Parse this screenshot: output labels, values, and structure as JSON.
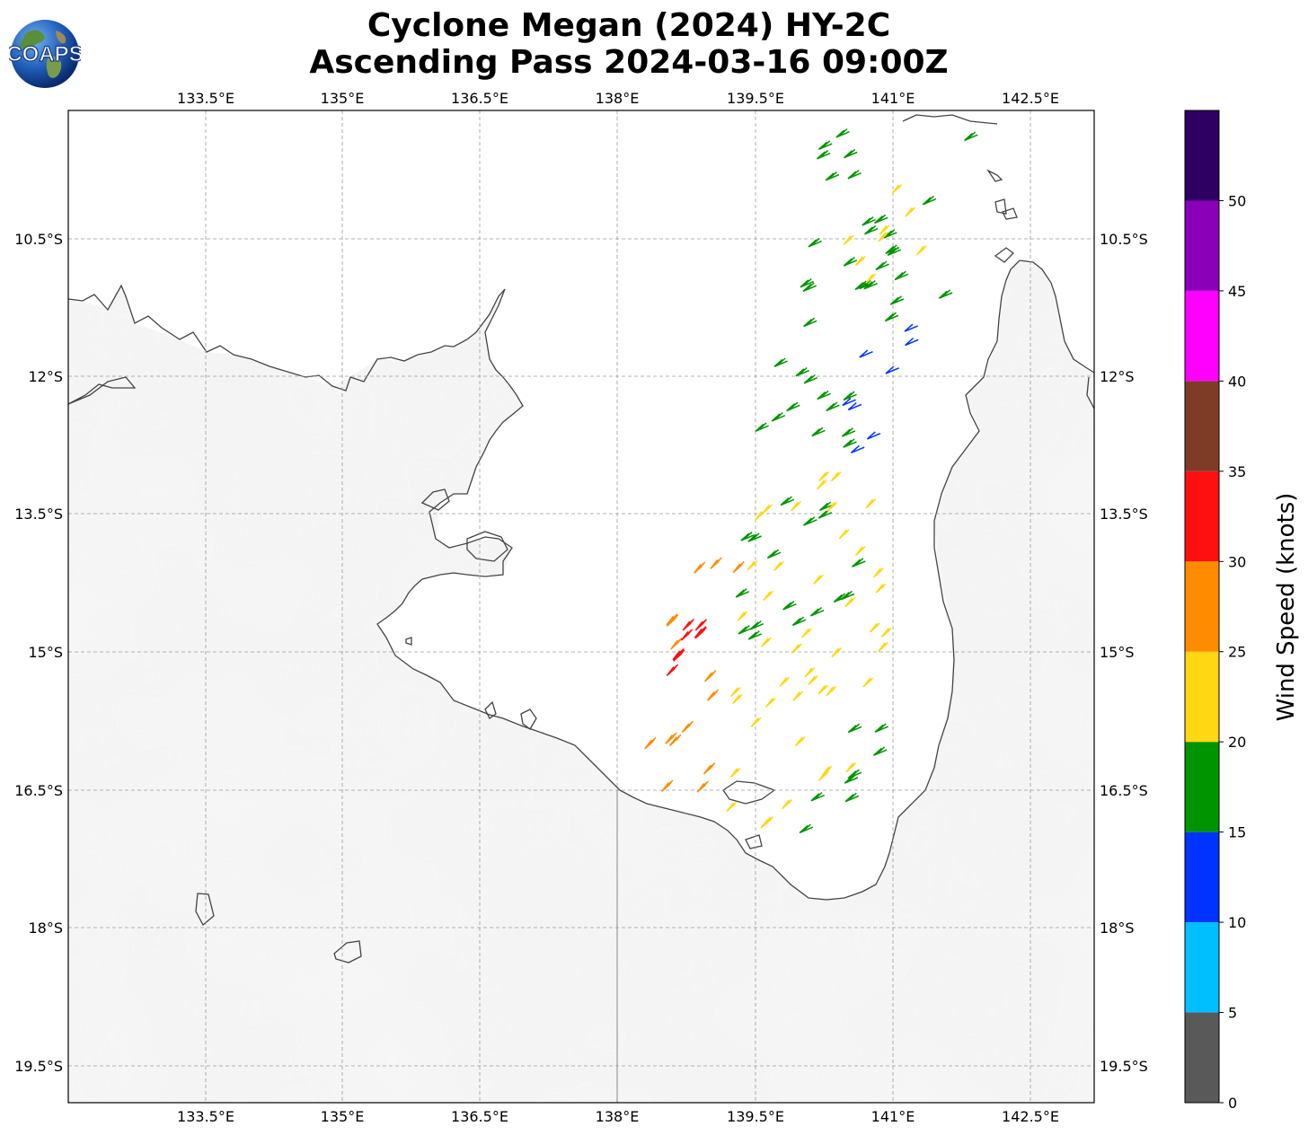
{
  "title": {
    "line1": "Cyclone Megan (2024) HY-2C",
    "line2": "Ascending Pass 2024-03-16 09:00Z"
  },
  "logo": {
    "text": "COAPS",
    "icon": "globe-logo-icon"
  },
  "map": {
    "lon_ticks": [
      "133.5°E",
      "135°E",
      "136.5°E",
      "138°E",
      "139.5°E",
      "141°E",
      "142.5°E"
    ],
    "lat_ticks": [
      "10.5°S",
      "12°S",
      "13.5°S",
      "15°S",
      "16.5°S",
      "18°S",
      "19.5°S"
    ],
    "lon_values": [
      133.5,
      135,
      136.5,
      138,
      139.5,
      141,
      142.5
    ],
    "lat_values": [
      -10.5,
      -12,
      -13.5,
      -15,
      -16.5,
      -18,
      -19.5
    ],
    "extent": {
      "lon_min": 132.0,
      "lon_max": 143.15,
      "lat_min": -19.9,
      "lat_max": -9.1
    },
    "gridlines": true,
    "basemap": "grayscale land, white sea"
  },
  "colorbar": {
    "title": "Wind Speed (knots)",
    "tick_labels": [
      "0",
      "5",
      "10",
      "15",
      "20",
      "25",
      "30",
      "35",
      "40",
      "45",
      "50"
    ],
    "bins": [
      {
        "from": 0,
        "to": 5,
        "color": "#595959"
      },
      {
        "from": 5,
        "to": 10,
        "color": "#00bfff"
      },
      {
        "from": 10,
        "to": 15,
        "color": "#0033ff"
      },
      {
        "from": 15,
        "to": 20,
        "color": "#009500"
      },
      {
        "from": 20,
        "to": 25,
        "color": "#ffd712"
      },
      {
        "from": 25,
        "to": 30,
        "color": "#ff8c00"
      },
      {
        "from": 30,
        "to": 35,
        "color": "#ff1010"
      },
      {
        "from": 35,
        "to": 40,
        "color": "#7e3c26"
      },
      {
        "from": 40,
        "to": 45,
        "color": "#ff00ff"
      },
      {
        "from": 45,
        "to": 50,
        "color": "#8a00b8"
      },
      {
        "from": 50,
        "to": 55,
        "color": "#2d0062"
      }
    ]
  },
  "wind_swath": {
    "description_layer": "wind barbs",
    "regions": [
      {
        "lat_from": -9.3,
        "lat_to": -11.5,
        "lon_from": 139.6,
        "lon_to": 142.2,
        "dominant_speed": 18,
        "color": "#009500"
      },
      {
        "lat_from": -9.7,
        "lat_to": -11.0,
        "lon_from": 140.3,
        "lon_to": 141.6,
        "dominant_speed": 22,
        "color": "#ffd712"
      },
      {
        "lat_from": -11.4,
        "lat_to": -12.8,
        "lon_from": 140.3,
        "lon_to": 141.3,
        "dominant_speed": 13,
        "color": "#0033ff"
      },
      {
        "lat_from": -11.8,
        "lat_to": -14.8,
        "lon_from": 139.2,
        "lon_to": 141.2,
        "dominant_speed": 17,
        "color": "#009500"
      },
      {
        "lat_from": -13.0,
        "lat_to": -16.9,
        "lon_from": 138.9,
        "lon_to": 141.3,
        "dominant_speed": 22,
        "color": "#ffd712"
      },
      {
        "lat_from": -13.9,
        "lat_to": -16.5,
        "lon_from": 138.2,
        "lon_to": 139.4,
        "dominant_speed": 27,
        "color": "#ff8c00"
      },
      {
        "lat_from": -14.4,
        "lat_to": -15.3,
        "lon_from": 138.6,
        "lon_to": 138.9,
        "dominant_speed": 32,
        "color": "#ff1010"
      },
      {
        "lat_from": -15.7,
        "lat_to": -17.1,
        "lon_from": 140.0,
        "lon_to": 141.1,
        "dominant_speed": 18,
        "color": "#009500"
      }
    ]
  }
}
